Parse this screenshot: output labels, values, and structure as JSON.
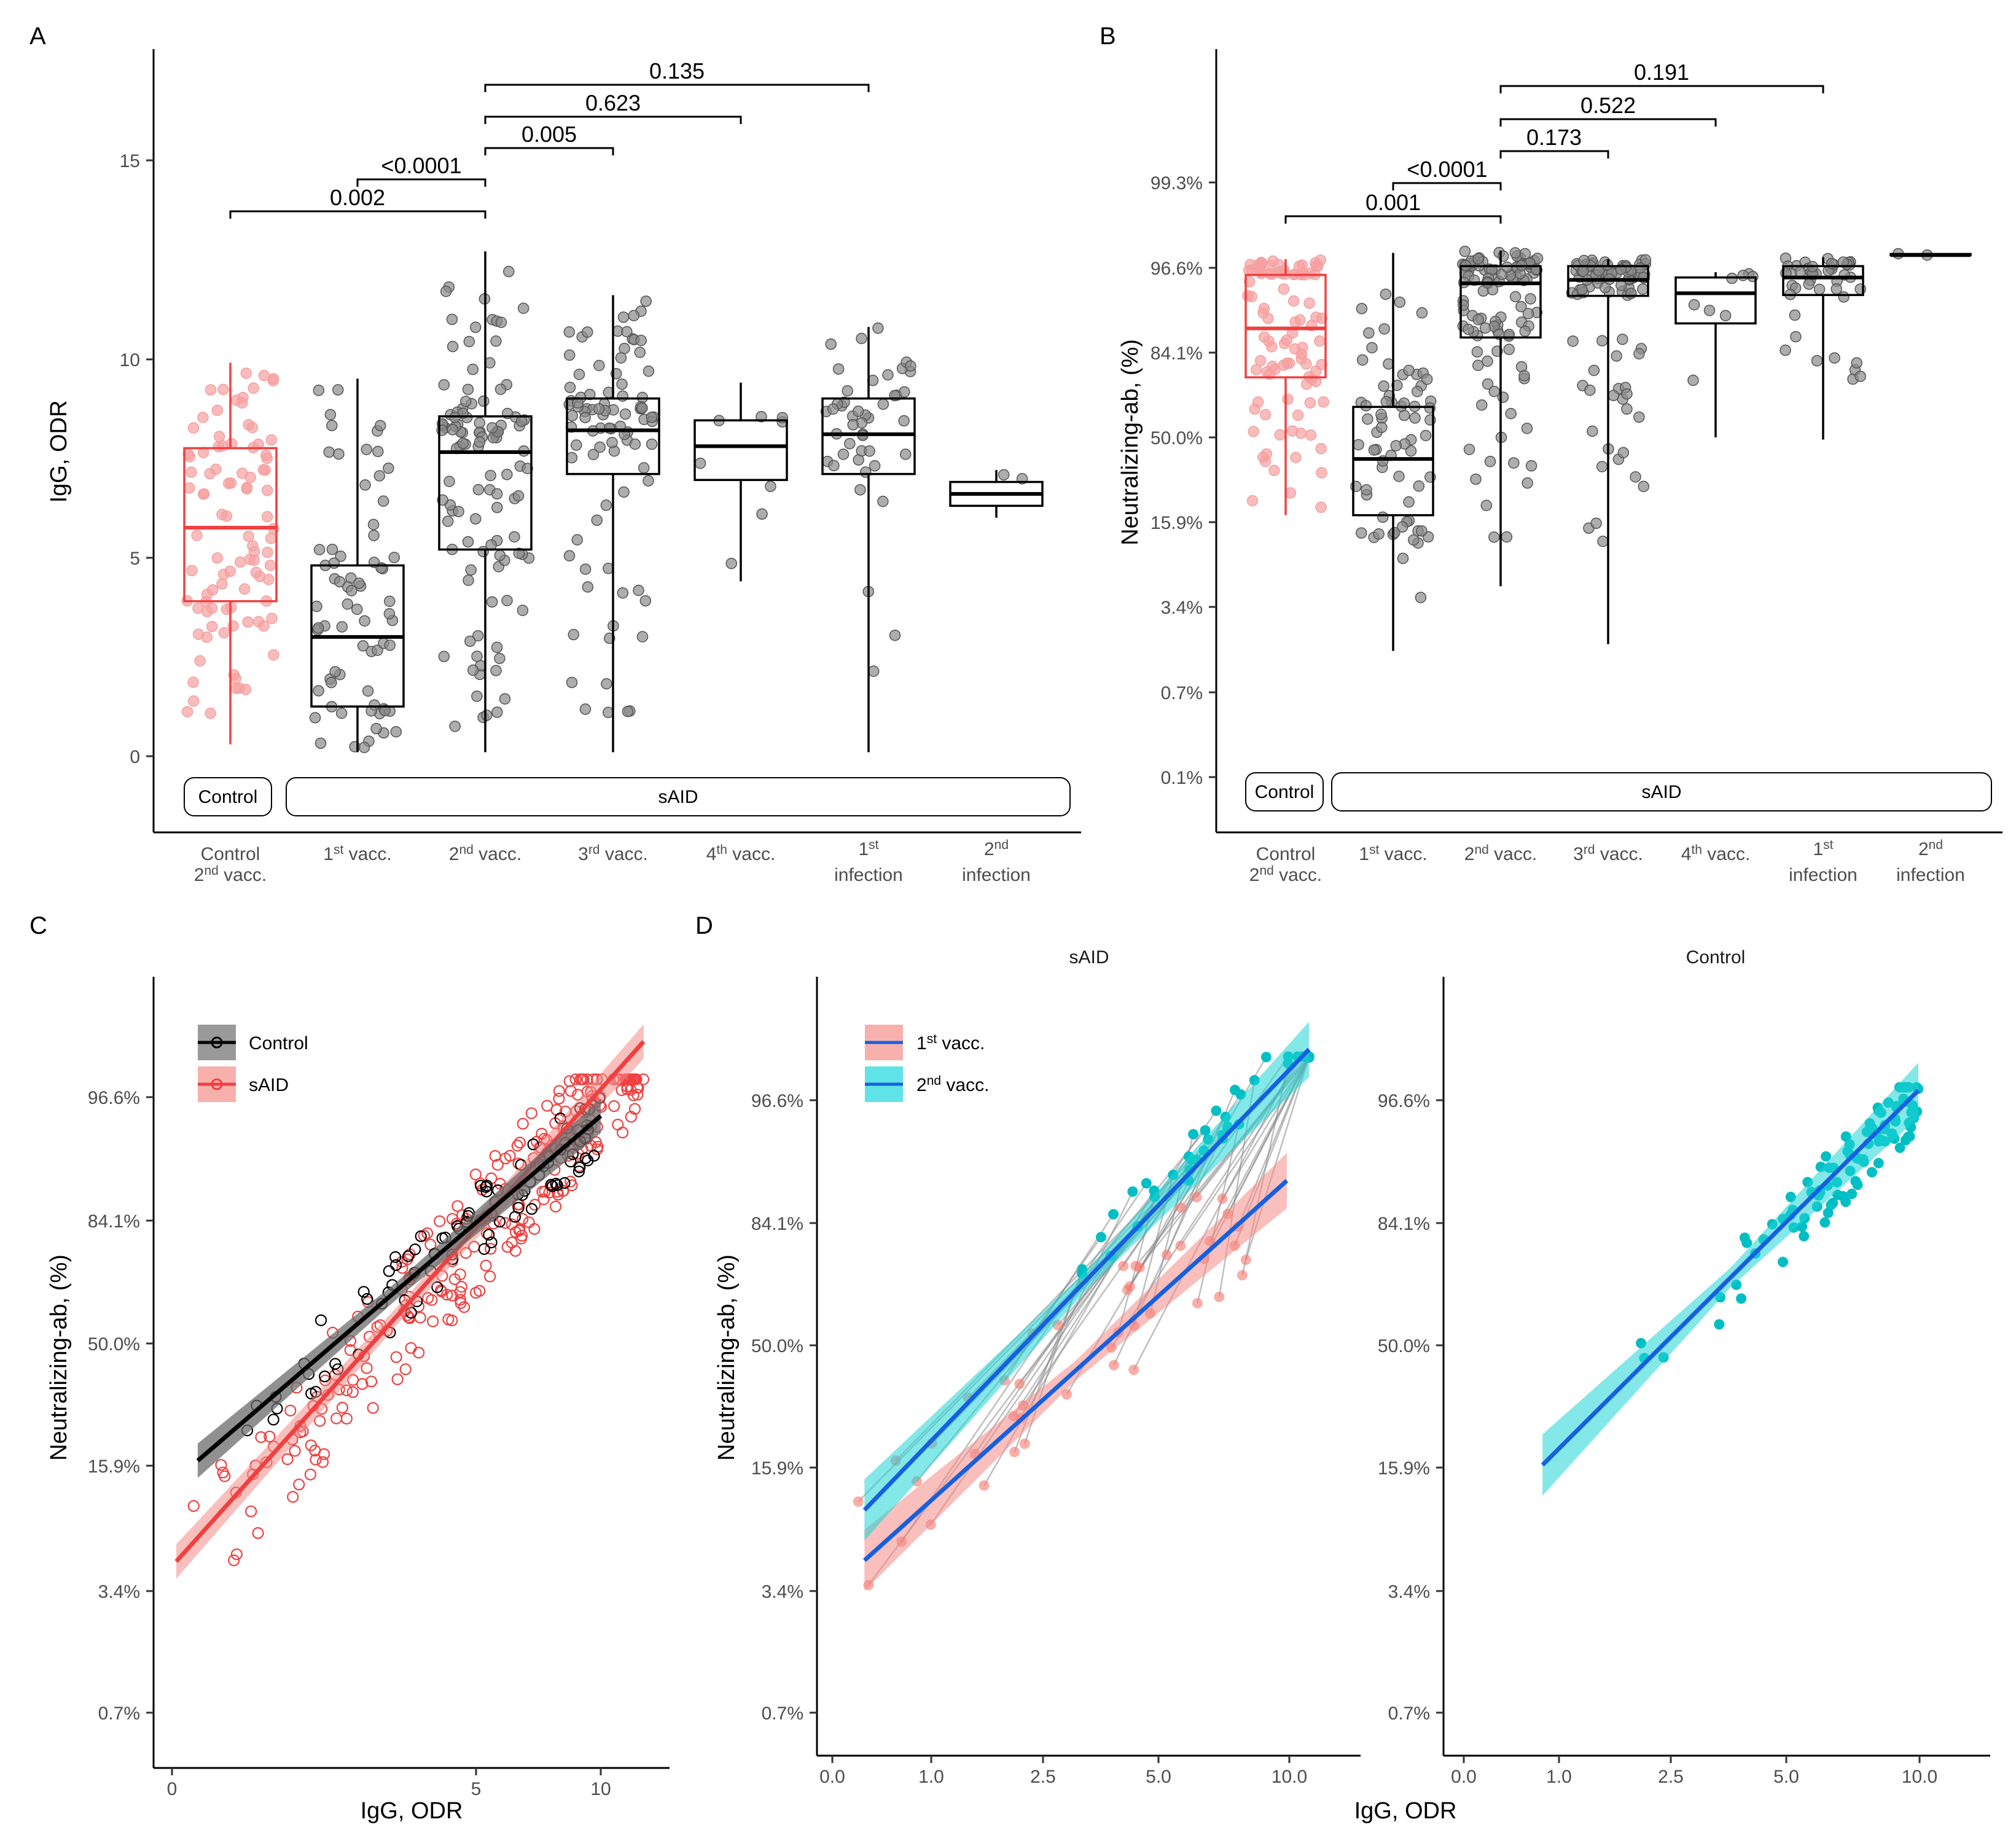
{
  "colors": {
    "control": "#f04040",
    "said": "#000000",
    "first": "#f8766d",
    "second": "#00bfc4",
    "fit": "#1560e0"
  },
  "chart_data": [
    {
      "panel": "A",
      "type": "box",
      "ylabel": "IgG, ODR",
      "ylim": [
        -2,
        17.5
      ],
      "yticks": [
        0,
        5,
        10,
        15
      ],
      "categories": [
        {
          "l1": "Control",
          "l2": "2nd vacc.",
          "sup": ""
        },
        {
          "l1": "1st vacc.",
          "l2": "",
          "sup": ""
        },
        {
          "l1": "2nd vacc.",
          "l2": "",
          "sup": ""
        },
        {
          "l1": "3rd vacc.",
          "l2": "",
          "sup": ""
        },
        {
          "l1": "4th vacc.",
          "l2": "",
          "sup": ""
        },
        {
          "l1": "1st",
          "l2": "infection",
          "sup": ""
        },
        {
          "l1": "2nd",
          "l2": "infection",
          "sup": ""
        }
      ],
      "boxes": [
        {
          "min": 0.3,
          "q1": 3.9,
          "median": 5.75,
          "q3": 7.75,
          "max": 9.9,
          "n": 95,
          "color": "control"
        },
        {
          "min": 0.1,
          "q1": 1.25,
          "median": 3.0,
          "q3": 4.8,
          "max": 9.5,
          "n": 70,
          "color": "said"
        },
        {
          "min": 0.1,
          "q1": 5.2,
          "median": 7.65,
          "q3": 8.55,
          "max": 12.7,
          "n": 110,
          "color": "said"
        },
        {
          "min": 0.1,
          "q1": 7.1,
          "median": 8.2,
          "q3": 9.0,
          "max": 11.6,
          "n": 90,
          "color": "said"
        },
        {
          "min": 4.4,
          "q1": 6.95,
          "median": 7.8,
          "q3": 8.45,
          "max": 9.4,
          "n": 8,
          "color": "said"
        },
        {
          "min": 0.1,
          "q1": 7.1,
          "median": 8.1,
          "q3": 9.0,
          "max": 10.8,
          "n": 45,
          "color": "said"
        },
        {
          "min": 6.0,
          "q1": 6.3,
          "median": 6.6,
          "q3": 6.9,
          "max": 7.2,
          "n": 2,
          "color": "said"
        }
      ],
      "comparisons": [
        {
          "from": 0,
          "to": 2,
          "label": "0.002",
          "level": 0
        },
        {
          "from": 1,
          "to": 2,
          "label": "<0.0001",
          "level": 1
        },
        {
          "from": 2,
          "to": 3,
          "label": "0.005",
          "level": 2
        },
        {
          "from": 2,
          "to": 5,
          "label": "0.623",
          "level": 3
        },
        {
          "from": 2,
          "to": 5,
          "label": "0.135",
          "level": 4
        }
      ],
      "group_labels": [
        "Control",
        "sAID"
      ]
    },
    {
      "panel": "B",
      "type": "box",
      "ylabel": "Neutralizing-ab, (%)",
      "yticks": [
        "0.1%",
        "0.7%",
        "3.4%",
        "15.9%",
        "50.0%",
        "84.1%",
        "96.6%",
        "99.3%"
      ],
      "categories": [
        {
          "l1": "Control",
          "l2": "2nd vacc."
        },
        {
          "l1": "1st vacc.",
          "l2": ""
        },
        {
          "l1": "2nd vacc.",
          "l2": ""
        },
        {
          "l1": "3rd vacc.",
          "l2": ""
        },
        {
          "l1": "4th vacc.",
          "l2": ""
        },
        {
          "l1": "1st",
          "l2": "infection"
        },
        {
          "l1": "2nd",
          "l2": "infection"
        }
      ],
      "boxes": [
        {
          "min": 18,
          "q1": 76,
          "median": 90,
          "q3": 97.2,
          "max": 98.2,
          "n": 95,
          "color": "control"
        },
        {
          "min": 0.6,
          "q1": 18,
          "median": 40,
          "q3": 64,
          "max": 98.5,
          "n": 70,
          "color": "said"
        },
        {
          "min": 4.0,
          "q1": 88,
          "median": 96.5,
          "q3": 97.8,
          "max": 98.6,
          "n": 110,
          "color": "said"
        },
        {
          "min": 0.75,
          "q1": 95.2,
          "median": 96.8,
          "q3": 97.8,
          "max": 98.2,
          "n": 90,
          "color": "said"
        },
        {
          "min": 50,
          "q1": 91,
          "median": 95.5,
          "q3": 97,
          "max": 97.4,
          "n": 8,
          "color": "said"
        },
        {
          "min": 49,
          "q1": 95.3,
          "median": 97,
          "q3": 97.8,
          "max": 98.3,
          "n": 45,
          "color": "said"
        },
        {
          "min": 98.4,
          "q1": 98.4,
          "median": 98.4,
          "q3": 98.45,
          "max": 98.5,
          "n": 2,
          "color": "said"
        }
      ],
      "comparisons": [
        {
          "from": 0,
          "to": 2,
          "label": "0.001",
          "level": 0
        },
        {
          "from": 1,
          "to": 2,
          "label": "<0.0001",
          "level": 1
        },
        {
          "from": 2,
          "to": 3,
          "label": "0.173",
          "level": 2
        },
        {
          "from": 2,
          "to": 4,
          "label": "0.522",
          "level": 3
        },
        {
          "from": 2,
          "to": 5,
          "label": "0.191",
          "level": 4
        }
      ],
      "group_labels": [
        "Control",
        "sAID"
      ]
    },
    {
      "panel": "C",
      "type": "scatter",
      "xlabel": "IgG, ODR",
      "ylabel": "Neutralizing-ab, (%)",
      "xticks": [
        0,
        5,
        10
      ],
      "yticks": [
        "0.7%",
        "3.4%",
        "15.9%",
        "50.0%",
        "84.1%",
        "96.6%"
      ],
      "series": [
        {
          "name": "Control",
          "color": "said",
          "n": 95,
          "fit": {
            "x0": 0.6,
            "x1": 10,
            "y0": 17,
            "y1": 96.8
          }
        },
        {
          "name": "sAID",
          "color": "control",
          "n": 260,
          "fit": {
            "x0": 0.1,
            "x1": 11,
            "y0": 3.8,
            "y1": 99.3
          }
        }
      ]
    },
    {
      "panel": "D",
      "type": "scatter",
      "xlabel": "IgG, ODR",
      "ylabel": "Neutralizing-ab, (%)",
      "xticks": [
        "0.0",
        "1.0",
        "2.5",
        "5.0",
        "10.0"
      ],
      "yticks": [
        "0.7%",
        "3.4%",
        "15.9%",
        "50.0%",
        "84.1%",
        "96.6%"
      ],
      "facets": [
        "sAID",
        "Control"
      ],
      "series": [
        {
          "name": "1st vacc.",
          "color": "first",
          "fit": {
            "x0": 0.05,
            "x1": 10,
            "y0": 4.0,
            "y1": 91
          }
        },
        {
          "name": "2nd vacc.",
          "color": "second",
          "fit": {
            "x0": 0.05,
            "x1": 11,
            "y0": 9.0,
            "y1": 99.2
          }
        }
      ],
      "control_fit": {
        "x0": 0.3,
        "x1": 10,
        "y0": 16.5,
        "y1": 98.1
      }
    }
  ],
  "panel_A": {
    "label": "A",
    "ylabel": "IgG, ODR",
    "group_control": "Control",
    "group_said": "sAID",
    "cat1": "Control",
    "cat1b": "2",
    "cat1c": "nd",
    "cat1d": " vacc.",
    "cat2a": "1",
    "cat2b": "st",
    "cat2c": " vacc.",
    "cat3a": "2",
    "cat3b": "nd",
    "cat3c": " vacc.",
    "cat4a": "3",
    "cat4b": "rd",
    "cat4c": " vacc.",
    "cat5a": "4",
    "cat5b": "th",
    "cat5c": " vacc.",
    "cat6a": "1",
    "cat6b": "st",
    "cat6c": "infection",
    "cat7a": "2",
    "cat7b": "nd",
    "cat7c": "infection",
    "yt0": "0",
    "yt5": "5",
    "yt10": "10",
    "yt15": "15",
    "p1": "0.002",
    "p2": "<0.0001",
    "p3": "0.005",
    "p4": "0.623",
    "p5": "0.135"
  },
  "panel_B": {
    "label": "B",
    "ylabel": "Neutralizing-ab, (%)",
    "group_control": "Control",
    "group_said": "sAID",
    "yt1": "0.1%",
    "yt2": "0.7%",
    "yt3": "3.4%",
    "yt4": "15.9%",
    "yt5": "50.0%",
    "yt6": "84.1%",
    "yt7": "96.6%",
    "yt8": "99.3%",
    "p1": "0.001",
    "p2": "<0.0001",
    "p3": "0.173",
    "p4": "0.522",
    "p5": "0.191"
  },
  "panel_C": {
    "label": "C",
    "xlabel": "IgG, ODR",
    "ylabel": "Neutralizing-ab, (%)",
    "leg1": "Control",
    "leg2": "sAID",
    "xt0": "0",
    "xt5": "5",
    "xt10": "10",
    "yt1": "0.7%",
    "yt2": "3.4%",
    "yt3": "15.9%",
    "yt4": "50.0%",
    "yt5": "84.1%",
    "yt6": "96.6%"
  },
  "panel_D": {
    "label": "D",
    "xlabel": "IgG, ODR",
    "ylabel": "Neutralizing-ab, (%)",
    "facet1": "sAID",
    "facet2": "Control",
    "leg1a": "1",
    "leg1b": "st",
    "leg1c": " vacc.",
    "leg2a": "2",
    "leg2b": "nd",
    "leg2c": " vacc.",
    "xt0": "0.0",
    "xt1": "1.0",
    "xt2": "2.5",
    "xt3": "5.0",
    "xt4": "10.0",
    "yt1": "0.7%",
    "yt2": "3.4%",
    "yt3": "15.9%",
    "yt4": "50.0%",
    "yt5": "84.1%",
    "yt6": "96.6%"
  }
}
